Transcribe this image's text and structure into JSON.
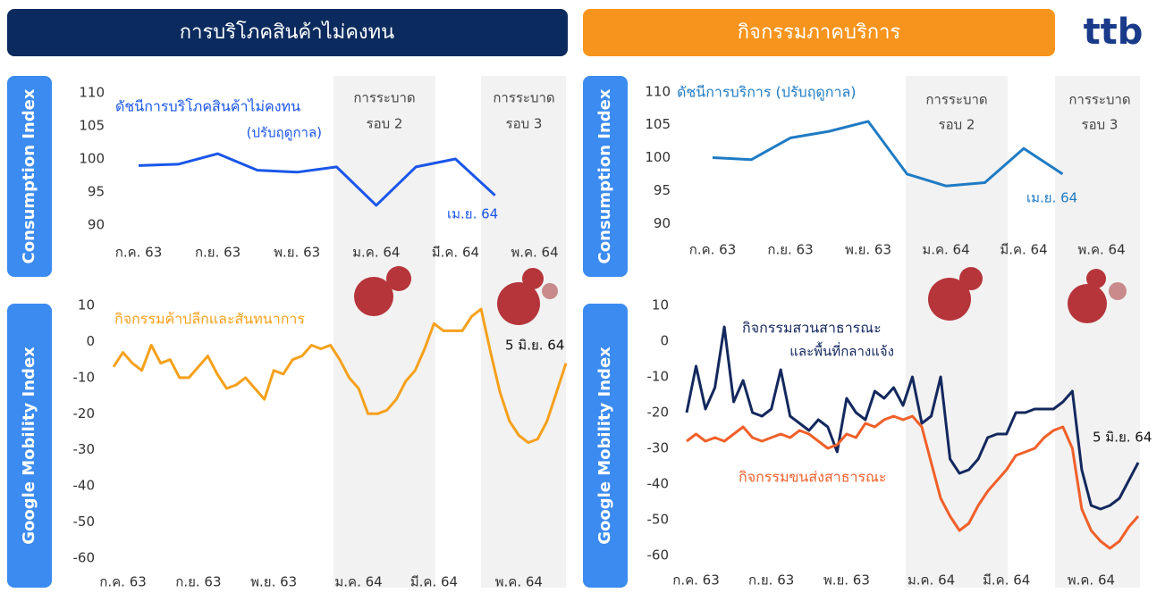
{
  "header": {
    "left_title": "การบริโภคสินค้าไม่คงทน",
    "right_title": "กิจกรรมภาคบริการ",
    "logo": "ttb"
  },
  "chart_data": [
    {
      "type": "line",
      "y_label": "Consumption Index",
      "categories": [
        "ก.ค. 63",
        null,
        "ก.ย. 63",
        null,
        "พ.ย. 63",
        null,
        "ม.ค. 64",
        null,
        "มี.ค. 64",
        null,
        "พ.ค. 64"
      ],
      "series": [
        {
          "name": "ดัชนีการบริโภคสินค้าไม่คงทน",
          "color": "#1a56e8",
          "values": [
            99,
            99.2,
            100.8,
            98.3,
            98,
            98.8,
            93,
            98.8,
            100,
            94.5,
            null
          ]
        }
      ],
      "ylim": [
        88,
        112
      ],
      "yticks": [
        110,
        105,
        100,
        95,
        90
      ],
      "annotations": [
        "(ปรับฤดูกาล)",
        "เม.ย. 64",
        "การระบาด",
        "รอบ 2",
        "การระบาด",
        "รอบ 3"
      ]
    },
    {
      "type": "line",
      "y_label": "Consumption Index",
      "categories": [
        "ก.ค. 63",
        null,
        "ก.ย. 63",
        null,
        "พ.ย. 63",
        null,
        "ม.ค. 64",
        null,
        "มี.ค. 64",
        null,
        "พ.ค. 64"
      ],
      "series": [
        {
          "name": "ดัชนีการบริการ (ปรับฤดูกาล)",
          "color": "#1f7bc4",
          "values": [
            100,
            99.7,
            103,
            104,
            105.5,
            97.5,
            95.7,
            96.2,
            101.4,
            97.5,
            null
          ]
        }
      ],
      "ylim": [
        88,
        112
      ],
      "yticks": [
        110,
        105,
        100,
        95,
        90
      ],
      "annotations": [
        "เม.ย. 64",
        "การระบาด",
        "รอบ 2",
        "การระบาด",
        "รอบ 3"
      ]
    },
    {
      "type": "line",
      "y_label": "Google Mobility Index",
      "categories": [
        null,
        "ก.ค. 63",
        null,
        null,
        null,
        null,
        null,
        null,
        null,
        "ก.ย. 63",
        null,
        null,
        null,
        null,
        null,
        null,
        null,
        "พ.ย. 63",
        null,
        null,
        null,
        null,
        null,
        null,
        null,
        null,
        "ม.ค. 64",
        null,
        null,
        null,
        null,
        null,
        null,
        null,
        "มี.ค. 64",
        null,
        null,
        null,
        null,
        null,
        null,
        null,
        null,
        "พ.ค. 64",
        null,
        null,
        null,
        null,
        null
      ],
      "series": [
        {
          "name": "กิจกรรมค้าปลีกและสันทนาการ",
          "color": "#f5a11c",
          "values": [
            -7,
            -3,
            -6,
            -8,
            -1,
            -6,
            -5,
            -10,
            -10,
            -7,
            -4,
            -9,
            -13,
            -12,
            -10,
            -13,
            -16,
            -8,
            -9,
            -5,
            -4,
            -1,
            -2,
            -1,
            -5,
            -10,
            -13,
            -20,
            -20,
            -19,
            -16,
            -11,
            -8,
            -2,
            5,
            3,
            3,
            3,
            7,
            9,
            -3,
            -14,
            -22,
            -26,
            -28,
            -27,
            -22,
            -14,
            -6
          ]
        }
      ],
      "ylim": [
        -62,
        12
      ],
      "yticks": [
        10,
        0,
        -10,
        -20,
        -30,
        -40,
        -50,
        -60
      ],
      "annotations": [
        "5 มิ.ย. 64"
      ]
    },
    {
      "type": "line",
      "y_label": "Google Mobility Index",
      "categories": [
        null,
        "ก.ค. 63",
        null,
        null,
        null,
        null,
        null,
        null,
        null,
        "ก.ย. 63",
        null,
        null,
        null,
        null,
        null,
        null,
        null,
        "พ.ย. 63",
        null,
        null,
        null,
        null,
        null,
        null,
        null,
        null,
        "ม.ค. 64",
        null,
        null,
        null,
        null,
        null,
        null,
        null,
        "มี.ค. 64",
        null,
        null,
        null,
        null,
        null,
        null,
        null,
        null,
        "พ.ค. 64",
        null,
        null,
        null,
        null,
        null
      ],
      "series": [
        {
          "name": "กิจกรรมสวนสาธารณะ",
          "color": "#14285e",
          "values": [
            -20,
            -7,
            -19,
            -13,
            4,
            -17,
            -11,
            -20,
            -21,
            -19,
            -8,
            -21,
            -23,
            -25,
            -22,
            -24,
            -31,
            -16,
            -20,
            -22,
            -14,
            -16,
            -13,
            -18,
            -10,
            -23,
            -21,
            -10,
            -33,
            -37,
            -36,
            -33,
            -27,
            -26,
            -26,
            -20,
            -20,
            -19,
            -19,
            -19,
            -17,
            -14,
            -36,
            -46,
            -47,
            -46,
            -44,
            -39,
            -34
          ]
        },
        {
          "name": "กิจกรรมขนส่งสาธารณะ",
          "color": "#f0602a",
          "values": [
            -28,
            -26,
            -28,
            -27,
            -28,
            -26,
            -24,
            -27,
            -28,
            -27,
            -26,
            -27,
            -25,
            -26,
            -28,
            -30,
            -29,
            -26,
            -27,
            -23,
            -24,
            -22,
            -21,
            -22,
            -21,
            -24,
            -34,
            -44,
            -49,
            -53,
            -51,
            -46,
            -42,
            -39,
            -36,
            -32,
            -31,
            -30,
            -27,
            -25,
            -24,
            -30,
            -47,
            -53,
            -56,
            -58,
            -56,
            -52,
            -49
          ]
        }
      ],
      "ylim": [
        -62,
        12
      ],
      "yticks": [
        10,
        0,
        -10,
        -20,
        -30,
        -40,
        -50,
        -60
      ],
      "annotations": [
        "และพื้นที่กลางแจ้ง",
        "5 มิ.ย. 64"
      ]
    }
  ]
}
